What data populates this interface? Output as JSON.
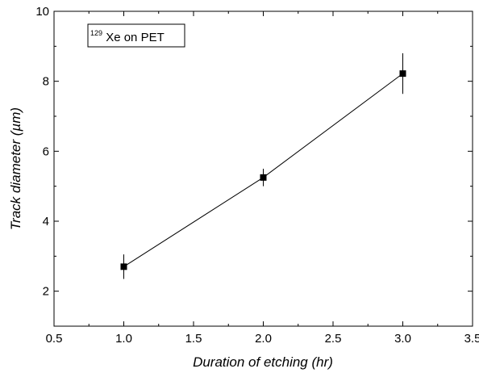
{
  "chart_data": {
    "type": "line",
    "title": "",
    "xlabel": "Duration of etching (hr)",
    "ylabel_prefix": "Track diameter (",
    "ylabel_unit": "µm",
    "ylabel_suffix": ")",
    "xlim": [
      0.5,
      3.5
    ],
    "ylim": [
      1,
      10
    ],
    "x_ticks": [
      0.5,
      1.0,
      1.5,
      2.0,
      2.5,
      3.0,
      3.5
    ],
    "x_tick_labels": [
      "0.5",
      "1.0",
      "1.5",
      "2.0",
      "2.5",
      "3.0",
      "3.5"
    ],
    "y_ticks": [
      2,
      4,
      6,
      8,
      10
    ],
    "y_tick_labels": [
      "2",
      "4",
      "6",
      "8",
      "10"
    ],
    "grid": false,
    "legend": {
      "placement": "top-left",
      "sup": "129",
      "text": " Xe on PET"
    },
    "series": [
      {
        "x": [
          1.0,
          2.0,
          3.0
        ],
        "y": [
          2.7,
          5.25,
          8.22
        ],
        "err": [
          0.35,
          0.25,
          0.58
        ],
        "marker": "square",
        "color": "#000000"
      }
    ]
  }
}
